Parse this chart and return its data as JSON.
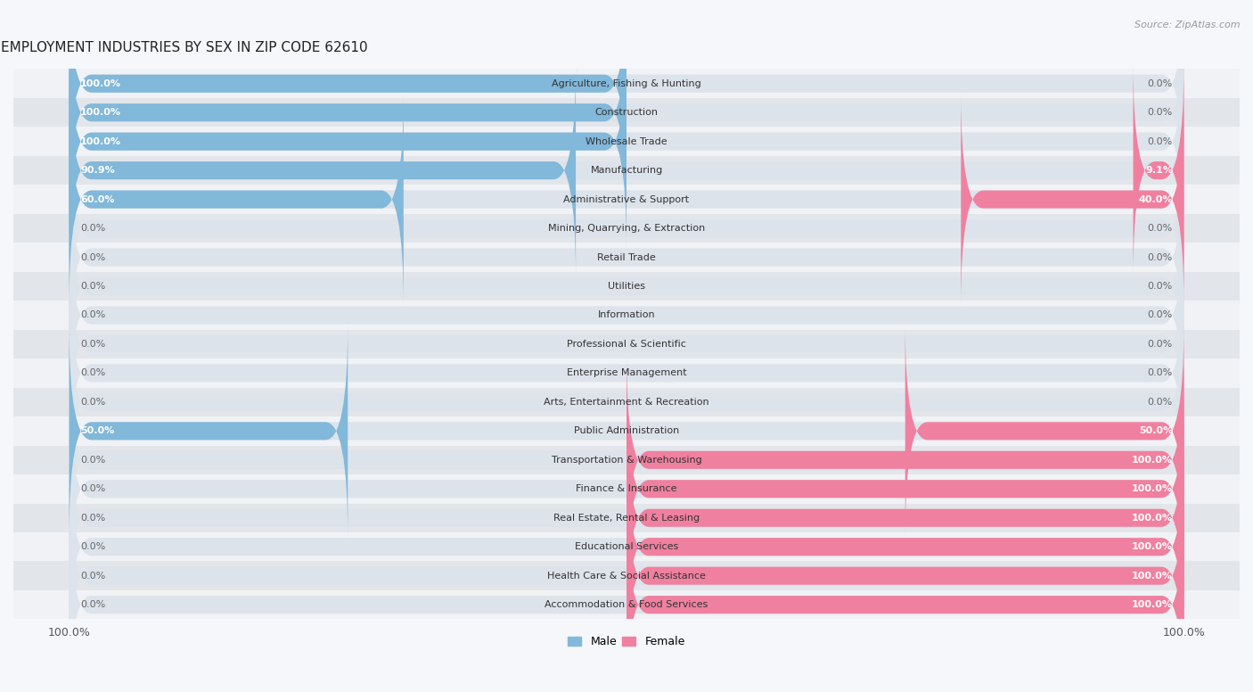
{
  "title": "EMPLOYMENT INDUSTRIES BY SEX IN ZIP CODE 62610",
  "source": "Source: ZipAtlas.com",
  "male_color": "#82b8d9",
  "female_color": "#f080a0",
  "row_bg_color_light": "#f0f2f5",
  "row_bg_color_dark": "#e2e6ea",
  "pill_bg_color": "#dce3eb",
  "background_color": "#f5f7fa",
  "categories": [
    "Agriculture, Fishing & Hunting",
    "Construction",
    "Wholesale Trade",
    "Manufacturing",
    "Administrative & Support",
    "Mining, Quarrying, & Extraction",
    "Retail Trade",
    "Utilities",
    "Information",
    "Professional & Scientific",
    "Enterprise Management",
    "Arts, Entertainment & Recreation",
    "Public Administration",
    "Transportation & Warehousing",
    "Finance & Insurance",
    "Real Estate, Rental & Leasing",
    "Educational Services",
    "Health Care & Social Assistance",
    "Accommodation & Food Services"
  ],
  "male_pct": [
    100.0,
    100.0,
    100.0,
    90.9,
    60.0,
    0.0,
    0.0,
    0.0,
    0.0,
    0.0,
    0.0,
    0.0,
    50.0,
    0.0,
    0.0,
    0.0,
    0.0,
    0.0,
    0.0
  ],
  "female_pct": [
    0.0,
    0.0,
    0.0,
    9.1,
    40.0,
    0.0,
    0.0,
    0.0,
    0.0,
    0.0,
    0.0,
    0.0,
    50.0,
    100.0,
    100.0,
    100.0,
    100.0,
    100.0,
    100.0
  ],
  "figsize": [
    14.06,
    7.76
  ],
  "dpi": 100
}
